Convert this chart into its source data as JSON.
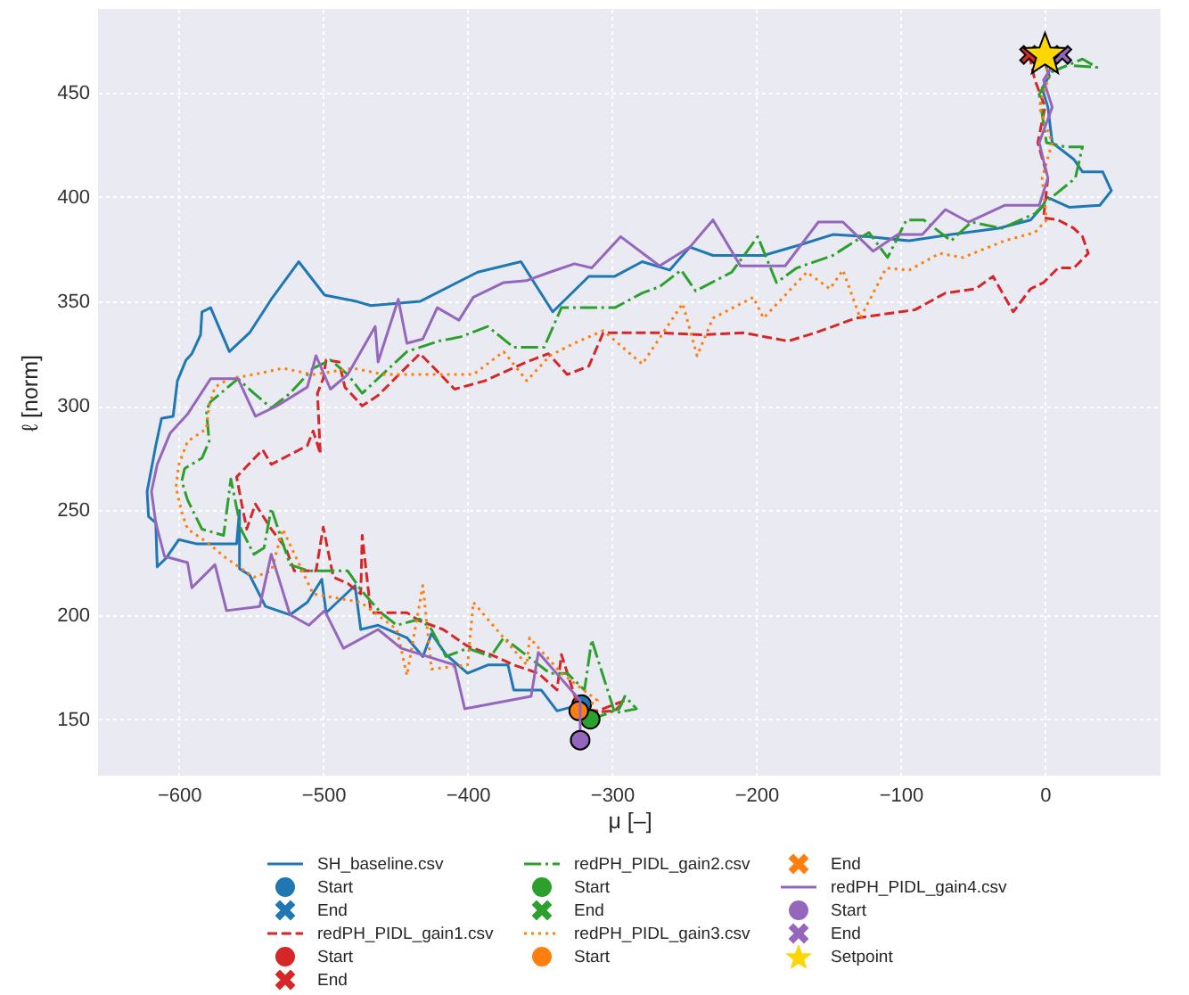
{
  "chart_data": {
    "type": "line",
    "xlabel": "μ [–]",
    "ylabel": "ℓ [norm]",
    "xlim": [
      -656,
      80
    ],
    "ylim": [
      123,
      490
    ],
    "xticks": [
      {
        "value": -600,
        "label": "−600"
      },
      {
        "value": -500,
        "label": "−500"
      },
      {
        "value": -400,
        "label": "−400"
      },
      {
        "value": -300,
        "label": "−300"
      },
      {
        "value": -200,
        "label": "−200"
      },
      {
        "value": -100,
        "label": "−100"
      },
      0
    ],
    "yticks": [
      150,
      200,
      250,
      300,
      350,
      400,
      450
    ],
    "grid": true,
    "legend": "bottom",
    "series": [
      {
        "name": "SH_baseline.csv",
        "color": "#1f77b4",
        "line_style": "solid",
        "x": [
          -322,
          -338,
          -349,
          -368,
          -372,
          -386,
          -400,
          -415,
          -425,
          -431,
          -442,
          -462,
          -474,
          -478,
          -498,
          -501,
          -511,
          -523,
          -540,
          -551,
          -558,
          -558,
          -560,
          -588,
          -600,
          -609,
          -615,
          -616,
          -621,
          -622,
          -616,
          -612,
          -604,
          -601,
          -595,
          -591,
          -585,
          -584,
          -578,
          -565,
          -551,
          -536,
          -517,
          -499,
          -477,
          -467,
          -433,
          -393,
          -363,
          -353,
          -341,
          -316,
          -298,
          -279,
          -260,
          -246,
          -230,
          -195,
          -170,
          -147,
          -122,
          -94,
          -65,
          -32,
          -10,
          -1,
          1,
          17,
          38,
          46,
          40,
          26,
          20,
          5,
          2,
          -2,
          3,
          0
        ],
        "values": [
          157,
          154,
          164,
          164,
          176,
          176,
          172,
          181,
          191,
          180,
          189,
          195,
          193,
          214,
          201,
          217,
          206,
          200,
          204,
          219,
          222,
          250,
          234,
          234,
          236,
          227,
          223,
          244,
          247,
          259,
          281,
          294,
          295,
          312,
          322,
          325,
          334,
          345,
          347,
          326,
          335,
          351,
          369,
          353,
          350,
          348,
          350,
          364,
          369,
          358,
          345,
          362,
          362,
          369,
          365,
          376,
          372,
          372,
          377,
          382,
          381,
          379,
          382,
          385,
          389,
          396,
          400,
          395,
          396,
          403,
          412,
          412,
          418,
          426,
          443,
          452,
          458,
          464
        ]
      },
      {
        "name": "Start",
        "type": "scatter",
        "color": "#1f77b4",
        "marker": "circle",
        "x": [
          -321
        ],
        "values": [
          157
        ]
      },
      {
        "name": "End",
        "type": "scatter",
        "color": "#1f77b4",
        "marker": "cross",
        "x": [
          null
        ],
        "values": [
          null
        ]
      },
      {
        "name": "redPH_PIDL_gain1.csv",
        "color": "#d62728",
        "line_style": "dashed",
        "x": [
          -326,
          -310,
          -291,
          -298,
          -322,
          -335,
          -338,
          -351,
          -368,
          -384,
          -400,
          -417,
          -433,
          -442,
          -467,
          -473,
          -474,
          -483,
          -493,
          -500,
          -505,
          -520,
          -526,
          -536,
          -547,
          -553,
          -557,
          -560,
          -542,
          -536,
          -511,
          -507,
          -502,
          -504,
          -500,
          -498,
          -489,
          -485,
          -473,
          -462,
          -433,
          -423,
          -409,
          -388,
          -359,
          -344,
          -331,
          -316,
          -306,
          -267,
          -238,
          -209,
          -178,
          -159,
          -131,
          -90,
          -69,
          -48,
          -36,
          -22,
          -10,
          -1,
          9,
          20,
          30,
          26,
          20,
          9,
          -1,
          2,
          -5,
          0,
          -7,
          -11
        ],
        "values": [
          155,
          154,
          159,
          154,
          153,
          181,
          164,
          172,
          176,
          181,
          185,
          193,
          197,
          201,
          201,
          238,
          210,
          215,
          218,
          242,
          221,
          221,
          232,
          241,
          253,
          241,
          255,
          266,
          279,
          272,
          281,
          288,
          277,
          306,
          313,
          322,
          321,
          309,
          300,
          305,
          325,
          318,
          308,
          312,
          321,
          325,
          315,
          319,
          335,
          335,
          334,
          335,
          331,
          335,
          342,
          346,
          354,
          356,
          362,
          345,
          356,
          359,
          366,
          366,
          373,
          381,
          385,
          389,
          390,
          409,
          426,
          443,
          456,
          468
        ]
      },
      {
        "name": "Start",
        "type": "scatter",
        "color": "#d62728",
        "marker": "circle",
        "x": [
          null
        ],
        "values": [
          null
        ]
      },
      {
        "name": "End",
        "type": "scatter",
        "color": "#d62728",
        "marker": "cross",
        "x": [
          -11
        ],
        "values": [
          468
        ]
      },
      {
        "name": "redPH_PIDL_gain2.csv",
        "color": "#2ca02c",
        "line_style": "dashdot",
        "x": [
          -315,
          -310,
          -295,
          -291,
          -283,
          -298,
          -314,
          -319,
          -331,
          -343,
          -375,
          -384,
          -400,
          -415,
          -425,
          -433,
          -449,
          -460,
          -474,
          -483,
          -510,
          -523,
          -536,
          -541,
          -548,
          -557,
          -564,
          -569,
          -584,
          -594,
          -598,
          -596,
          -584,
          -579,
          -581,
          -578,
          -559,
          -548,
          -536,
          -523,
          -507,
          -495,
          -483,
          -473,
          -442,
          -420,
          -405,
          -386,
          -368,
          -347,
          -335,
          -314,
          -298,
          -279,
          -267,
          -252,
          -242,
          -217,
          -199,
          -186,
          -172,
          -147,
          -122,
          -109,
          -96,
          -84,
          -65,
          -51,
          -30,
          -7,
          1,
          5,
          21,
          26,
          14,
          1,
          -4,
          5,
          26,
          36,
          17
        ],
        "values": [
          150,
          151,
          155,
          161,
          155,
          153,
          188,
          164,
          172,
          172,
          189,
          180,
          184,
          180,
          193,
          198,
          195,
          201,
          212,
          221,
          221,
          224,
          251,
          232,
          229,
          241,
          265,
          238,
          241,
          255,
          264,
          270,
          275,
          283,
          298,
          302,
          313,
          306,
          299,
          306,
          318,
          322,
          315,
          306,
          326,
          331,
          333,
          338,
          328,
          328,
          347,
          347,
          347,
          354,
          357,
          365,
          355,
          364,
          381,
          359,
          366,
          372,
          383,
          371,
          389,
          389,
          379,
          388,
          385,
          392,
          398,
          400,
          409,
          424,
          424,
          426,
          449,
          460,
          466,
          462,
          463
        ]
      },
      {
        "name": "Start",
        "type": "scatter",
        "color": "#2ca02c",
        "marker": "circle",
        "x": [
          -315
        ],
        "values": [
          150
        ]
      },
      {
        "name": "End",
        "type": "scatter",
        "color": "#2ca02c",
        "marker": "cross",
        "x": [
          null
        ],
        "values": [
          null
        ]
      },
      {
        "name": "redPH_PIDL_gain3.csv",
        "color": "#ff7f0e",
        "line_style": "dotted",
        "x": [
          -323,
          -310,
          -335,
          -357,
          -359,
          -396,
          -400,
          -425,
          -431,
          -442,
          -449,
          -474,
          -507,
          -528,
          -536,
          -548,
          -567,
          -581,
          -594,
          -598,
          -602,
          -600,
          -594,
          -581,
          -579,
          -575,
          -565,
          -548,
          -528,
          -507,
          -479,
          -458,
          -417,
          -396,
          -375,
          -359,
          -343,
          -326,
          -306,
          -279,
          -251,
          -241,
          -230,
          -202,
          -195,
          -165,
          -149,
          -140,
          -128,
          -110,
          -94,
          -73,
          -57,
          -28,
          -7,
          1,
          -2,
          5,
          -4,
          2,
          0
        ],
        "values": [
          154,
          159,
          172,
          189,
          176,
          206,
          176,
          174,
          214,
          171,
          193,
          206,
          210,
          241,
          221,
          218,
          227,
          235,
          241,
          249,
          261,
          272,
          283,
          289,
          300,
          309,
          313,
          315,
          318,
          315,
          318,
          315,
          315,
          315,
          326,
          312,
          324,
          330,
          336,
          320,
          349,
          324,
          342,
          352,
          342,
          364,
          356,
          365,
          342,
          366,
          365,
          373,
          371,
          379,
          383,
          389,
          409,
          426,
          443,
          456,
          467
        ]
      },
      {
        "name": "Start",
        "type": "scatter",
        "color": "#ff7f0e",
        "marker": "circle",
        "x": [
          -323
        ],
        "values": [
          154
        ]
      },
      {
        "name": "End",
        "type": "scatter",
        "color": "#ff7f0e",
        "marker": "cross",
        "x": [
          null
        ],
        "values": [
          null
        ]
      },
      {
        "name": "redPH_PIDL_gain4.csv",
        "color": "#9467bd",
        "line_style": "solid",
        "x": [
          -322,
          -322,
          -351,
          -356,
          -402,
          -409,
          -446,
          -462,
          -486,
          -499,
          -510,
          -523,
          -536,
          -544,
          -567,
          -575,
          -591,
          -594,
          -610,
          -616,
          -619,
          -615,
          -606,
          -594,
          -578,
          -559,
          -547,
          -532,
          -511,
          -505,
          -495,
          -483,
          -464,
          -462,
          -448,
          -442,
          -431,
          -421,
          -406,
          -396,
          -375,
          -359,
          -343,
          -326,
          -314,
          -294,
          -267,
          -246,
          -230,
          -211,
          -180,
          -157,
          -140,
          -119,
          -102,
          -85,
          -69,
          -53,
          -28,
          -4,
          2,
          -4,
          5,
          -1,
          7,
          12
        ],
        "values": [
          140,
          159,
          182,
          161,
          155,
          176,
          184,
          193,
          184,
          202,
          195,
          200,
          229,
          204,
          202,
          224,
          213,
          225,
          228,
          244,
          259,
          272,
          287,
          296,
          313,
          313,
          295,
          300,
          309,
          324,
          308,
          315,
          338,
          321,
          351,
          330,
          332,
          347,
          341,
          352,
          359,
          360,
          364,
          368,
          366,
          381,
          367,
          376,
          389,
          367,
          367,
          388,
          388,
          374,
          382,
          382,
          394,
          388,
          396,
          396,
          409,
          426,
          443,
          456,
          465,
          468
        ]
      },
      {
        "name": "Start",
        "type": "scatter",
        "color": "#9467bd",
        "marker": "circle",
        "x": [
          -322
        ],
        "values": [
          140
        ]
      },
      {
        "name": "End",
        "type": "scatter",
        "color": "#9467bd",
        "marker": "cross",
        "x": [
          12
        ],
        "values": [
          468
        ]
      },
      {
        "name": "Setpoint",
        "type": "scatter",
        "color": "#ffd700",
        "marker": "star",
        "x": [
          0
        ],
        "values": [
          469
        ]
      }
    ]
  }
}
